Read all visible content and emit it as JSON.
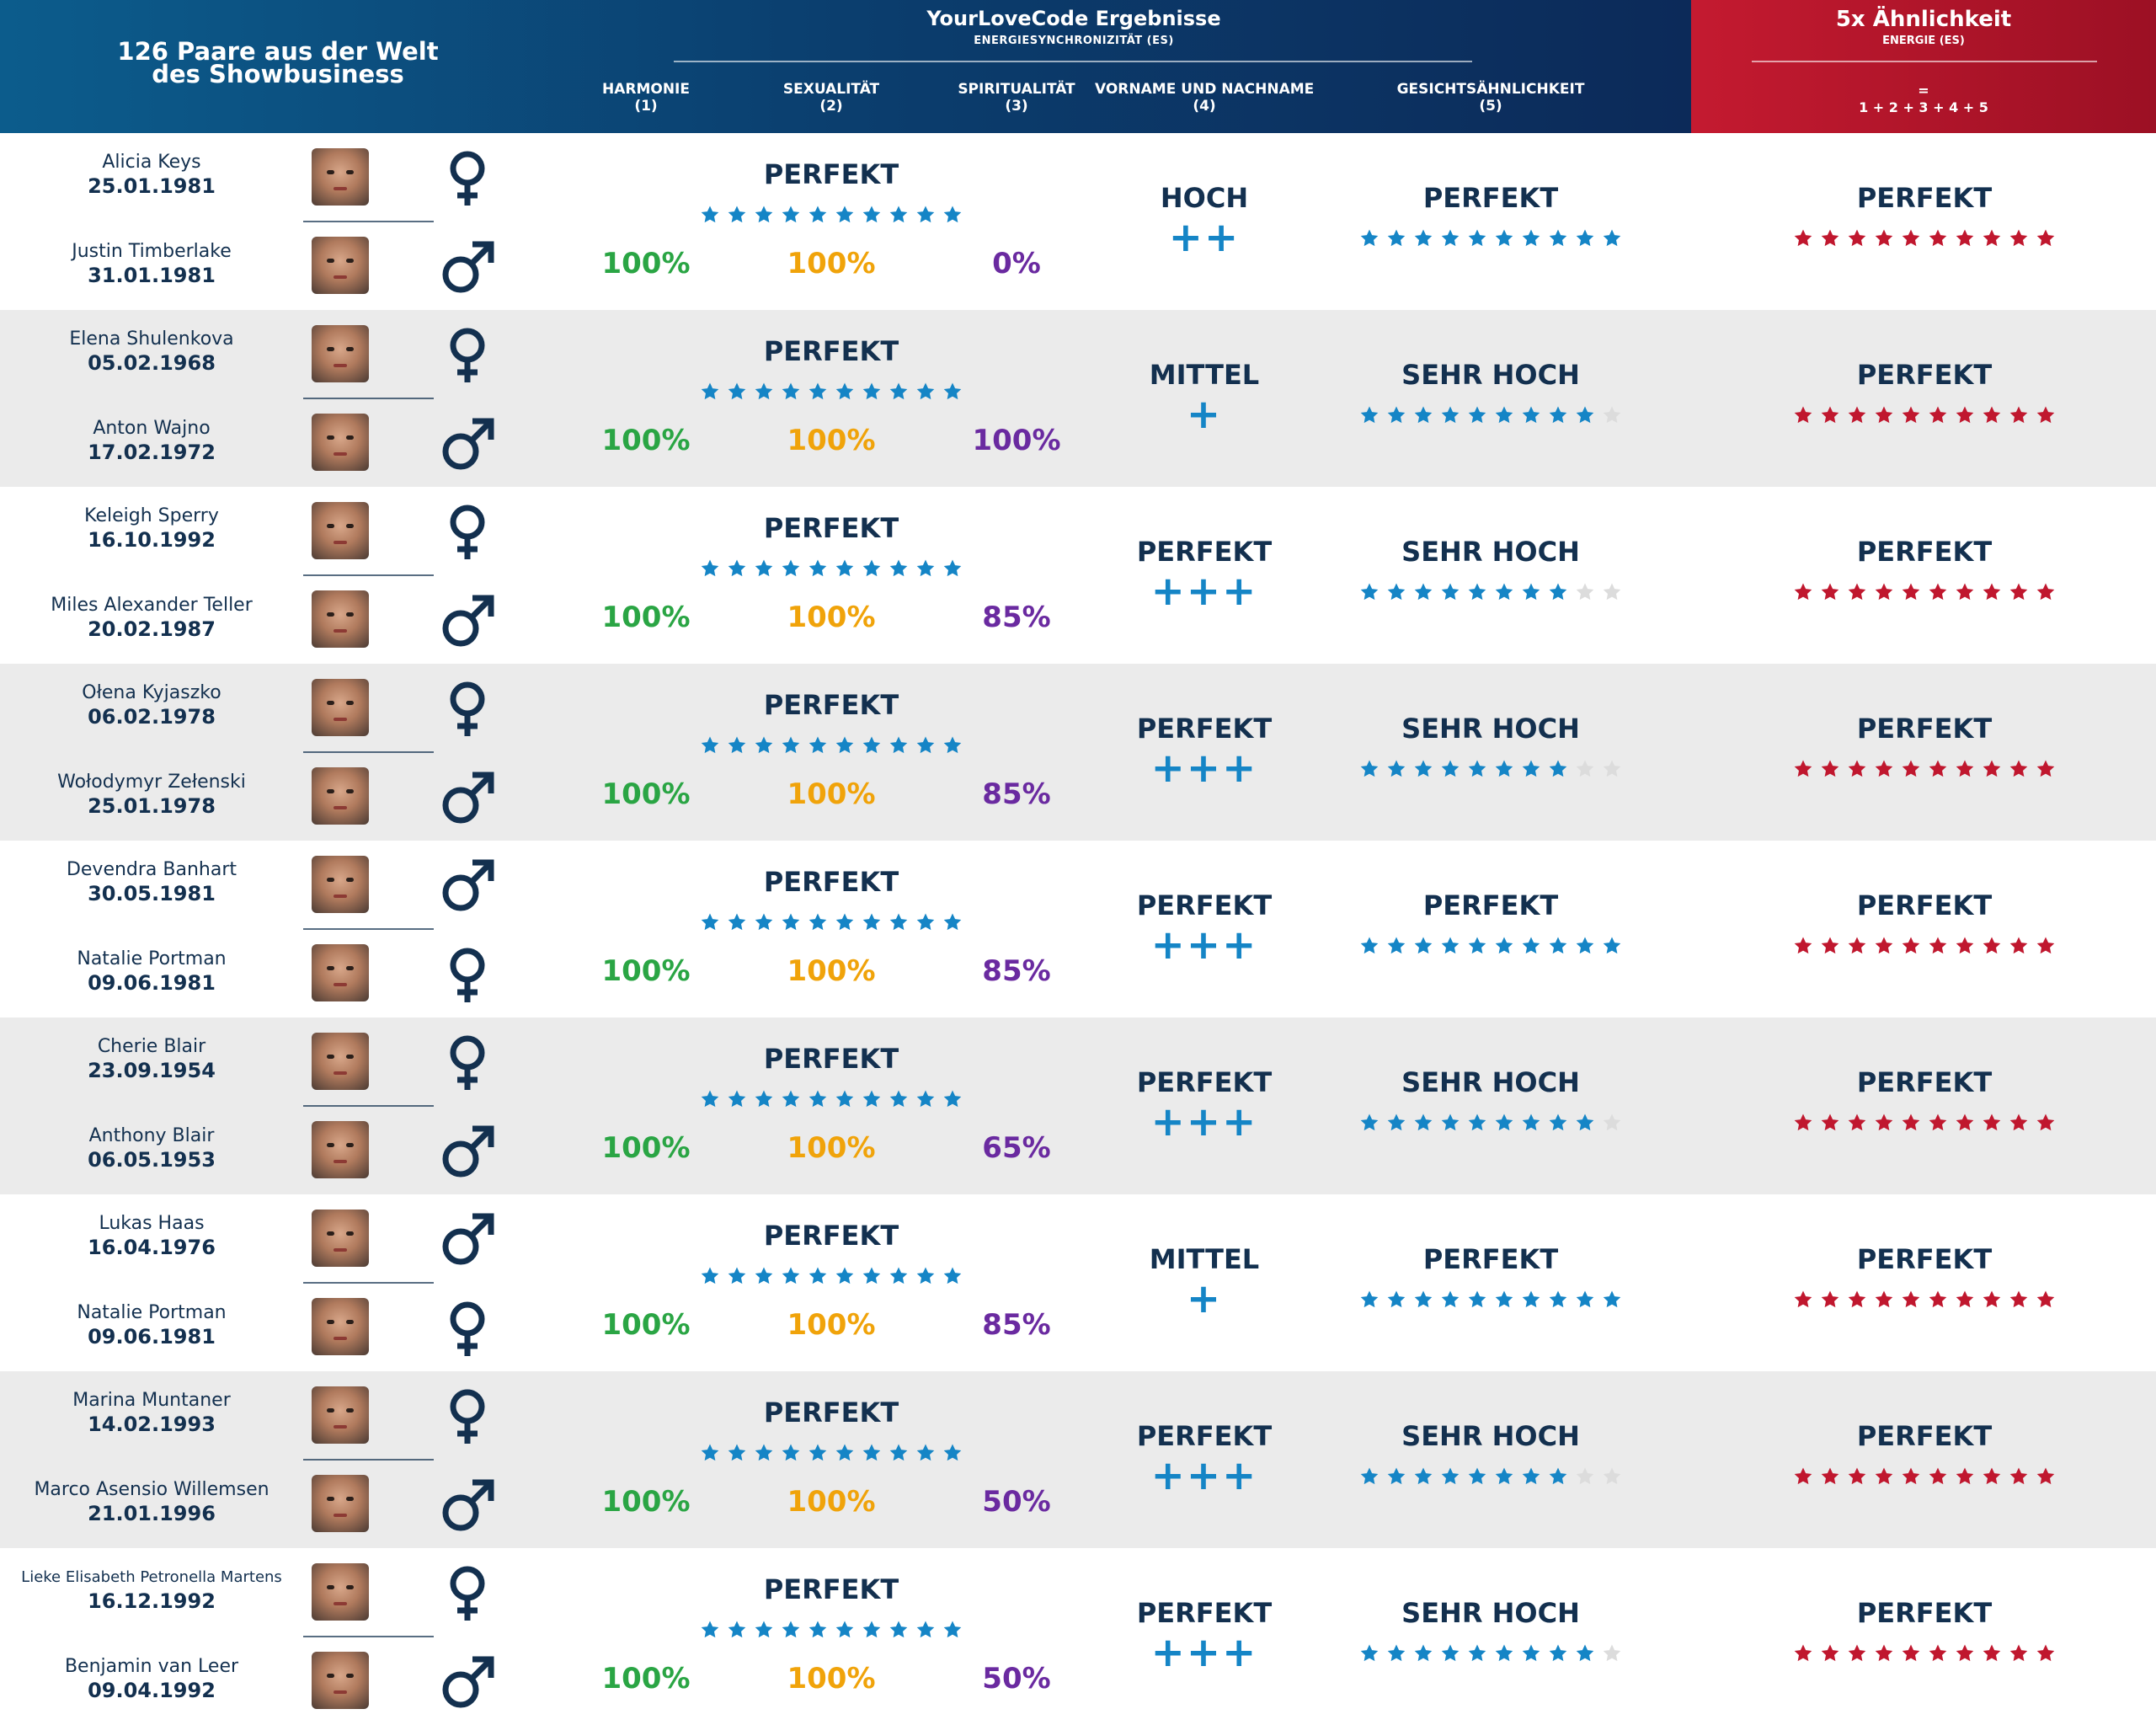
{
  "header": {
    "left_title": "126 Paare aus der Welt des Showbusiness",
    "main_title": "YourLoveCode Ergebnisse",
    "main_subtitle": "ENERGIESYNCHRONIZITÄT (ES)",
    "col_harmonie": "HARMONIE",
    "col_harmonie_num": "(1)",
    "col_sexualitaet": "SEXUALITÄT",
    "col_sexualitaet_num": "(2)",
    "col_spiritualitaet": "SPIRITUALITÄT",
    "col_spiritualitaet_num": "(3)",
    "col_name": "VORNAME UND NACHNAME",
    "col_name_num": "(4)",
    "col_face": "GESICHTSÄHNLICHKEIT",
    "col_face_num": "(5)",
    "red_title": "5x Ähnlichkeit",
    "red_subtitle": "ENERGIE (ES)",
    "red_eq": "=",
    "red_formula": "1 + 2 + 3 + 4 + 5"
  },
  "colors": {
    "navy": "#13304f",
    "star_blue": "#1585c6",
    "star_red": "#c0172e",
    "star_empty": "#dcdcdc",
    "green": "#2aa544",
    "orange": "#f0a30a",
    "purple": "#6a2aa0"
  },
  "icons": {
    "female": "female-symbol-icon",
    "male": "male-symbol-icon",
    "star": "star-icon"
  },
  "pairs": [
    {
      "p1": {
        "name": "Alicia Keys",
        "date": "25.01.1981",
        "gender": "f"
      },
      "p2": {
        "name": "Justin Timberlake",
        "date": "31.01.1981",
        "gender": "m"
      },
      "es_rating": "PERFEKT",
      "es_stars": 10,
      "harmonie": "100%",
      "sexualitaet": "100%",
      "spiritualitaet": "0%",
      "name_rating": "HOCH",
      "name_plus": "++",
      "face_rating": "PERFEKT",
      "face_stars": 10,
      "total_rating": "PERFEKT",
      "total_stars": 10
    },
    {
      "p1": {
        "name": "Elena Shulenkova",
        "date": "05.02.1968",
        "gender": "f"
      },
      "p2": {
        "name": "Anton Wajno",
        "date": "17.02.1972",
        "gender": "m"
      },
      "es_rating": "PERFEKT",
      "es_stars": 10,
      "harmonie": "100%",
      "sexualitaet": "100%",
      "spiritualitaet": "100%",
      "name_rating": "MITTEL",
      "name_plus": "+",
      "face_rating": "SEHR HOCH",
      "face_stars": 9,
      "total_rating": "PERFEKT",
      "total_stars": 10
    },
    {
      "p1": {
        "name": "Keleigh Sperry",
        "date": "16.10.1992",
        "gender": "f"
      },
      "p2": {
        "name": "Miles Alexander Teller",
        "date": "20.02.1987",
        "gender": "m"
      },
      "es_rating": "PERFEKT",
      "es_stars": 10,
      "harmonie": "100%",
      "sexualitaet": "100%",
      "spiritualitaet": "85%",
      "name_rating": "PERFEKT",
      "name_plus": "+++",
      "face_rating": "SEHR HOCH",
      "face_stars": 8,
      "total_rating": "PERFEKT",
      "total_stars": 10
    },
    {
      "p1": {
        "name": "Ołena Kyjaszko",
        "date": "06.02.1978",
        "gender": "f"
      },
      "p2": {
        "name": "Wołodymyr Zełenski",
        "date": "25.01.1978",
        "gender": "m"
      },
      "es_rating": "PERFEKT",
      "es_stars": 10,
      "harmonie": "100%",
      "sexualitaet": "100%",
      "spiritualitaet": "85%",
      "name_rating": "PERFEKT",
      "name_plus": "+++",
      "face_rating": "SEHR HOCH",
      "face_stars": 8,
      "total_rating": "PERFEKT",
      "total_stars": 10
    },
    {
      "p1": {
        "name": "Devendra Banhart",
        "date": "30.05.1981",
        "gender": "m"
      },
      "p2": {
        "name": "Natalie Portman",
        "date": "09.06.1981",
        "gender": "f"
      },
      "es_rating": "PERFEKT",
      "es_stars": 10,
      "harmonie": "100%",
      "sexualitaet": "100%",
      "spiritualitaet": "85%",
      "name_rating": "PERFEKT",
      "name_plus": "+++",
      "face_rating": "PERFEKT",
      "face_stars": 10,
      "total_rating": "PERFEKT",
      "total_stars": 10
    },
    {
      "p1": {
        "name": "Cherie Blair",
        "date": "23.09.1954",
        "gender": "f"
      },
      "p2": {
        "name": "Anthony Blair",
        "date": "06.05.1953",
        "gender": "m"
      },
      "es_rating": "PERFEKT",
      "es_stars": 10,
      "harmonie": "100%",
      "sexualitaet": "100%",
      "spiritualitaet": "65%",
      "name_rating": "PERFEKT",
      "name_plus": "+++",
      "face_rating": "SEHR HOCH",
      "face_stars": 9,
      "total_rating": "PERFEKT",
      "total_stars": 10
    },
    {
      "p1": {
        "name": "Lukas Haas",
        "date": "16.04.1976",
        "gender": "m"
      },
      "p2": {
        "name": "Natalie Portman",
        "date": "09.06.1981",
        "gender": "f"
      },
      "es_rating": "PERFEKT",
      "es_stars": 10,
      "harmonie": "100%",
      "sexualitaet": "100%",
      "spiritualitaet": "85%",
      "name_rating": "MITTEL",
      "name_plus": "+",
      "face_rating": "PERFEKT",
      "face_stars": 10,
      "total_rating": "PERFEKT",
      "total_stars": 10
    },
    {
      "p1": {
        "name": "Marina Muntaner",
        "date": "14.02.1993",
        "gender": "f"
      },
      "p2": {
        "name": "Marco Asensio Willemsen",
        "date": "21.01.1996",
        "gender": "m"
      },
      "es_rating": "PERFEKT",
      "es_stars": 10,
      "harmonie": "100%",
      "sexualitaet": "100%",
      "spiritualitaet": "50%",
      "name_rating": "PERFEKT",
      "name_plus": "+++",
      "face_rating": "SEHR HOCH",
      "face_stars": 8,
      "total_rating": "PERFEKT",
      "total_stars": 10
    },
    {
      "p1": {
        "name": "Lieke Elisabeth Petronella Martens",
        "date": "16.12.1992",
        "gender": "f"
      },
      "p2": {
        "name": "Benjamin van Leer",
        "date": "09.04.1992",
        "gender": "m"
      },
      "es_rating": "PERFEKT",
      "es_stars": 10,
      "harmonie": "100%",
      "sexualitaet": "100%",
      "spiritualitaet": "50%",
      "name_rating": "PERFEKT",
      "name_plus": "+++",
      "face_rating": "SEHR HOCH",
      "face_stars": 9,
      "total_rating": "PERFEKT",
      "total_stars": 10
    }
  ]
}
